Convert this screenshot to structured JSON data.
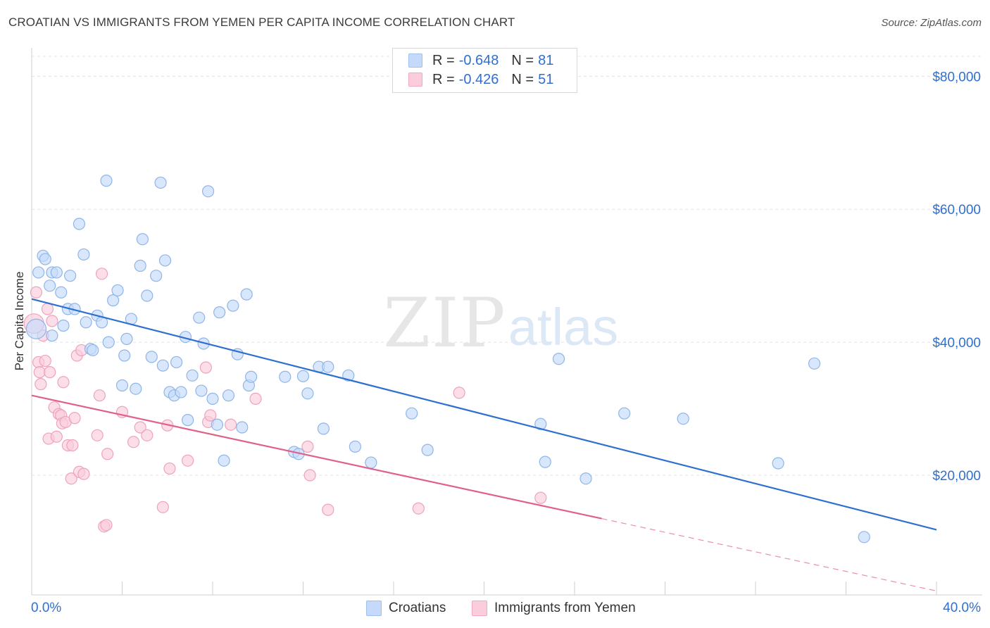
{
  "header": {
    "title": "CROATIAN VS IMMIGRANTS FROM YEMEN PER CAPITA INCOME CORRELATION CHART",
    "source": "Source: ZipAtlas.com"
  },
  "legend": {
    "r_label": "R =",
    "n_label": "N =",
    "items": [
      {
        "r": "-0.648",
        "n": "81",
        "color": "#9dc0ee",
        "fill": "#c5dafa"
      },
      {
        "r": "-0.426",
        "n": "51",
        "color": "#f0a9c0",
        "fill": "#fbcddc"
      }
    ]
  },
  "bottom_legend": [
    {
      "label": "Croatians",
      "color": "#9dc0ee",
      "fill": "#c5dafa"
    },
    {
      "label": "Immigrants from Yemen",
      "color": "#f0a9c0",
      "fill": "#fbcddc"
    }
  ],
  "watermark": {
    "zip": "ZIP",
    "atlas": "atlas"
  },
  "chart_data": {
    "type": "scatter",
    "title": "CROATIAN VS IMMIGRANTS FROM YEMEN PER CAPITA INCOME CORRELATION CHART",
    "xlabel": "",
    "ylabel": "Per Capita Income",
    "xlim": [
      0,
      40
    ],
    "ylim": [
      2000,
      83000
    ],
    "x_tick_labels": [
      "0.0%",
      "40.0%"
    ],
    "y_ticks": [
      {
        "value": 20000,
        "label": "$20,000"
      },
      {
        "value": 40000,
        "label": "$40,000"
      },
      {
        "value": 60000,
        "label": "$60,000"
      },
      {
        "value": 80000,
        "label": "$80,000"
      }
    ],
    "grid": true,
    "legend_position": "top-center",
    "colors": {
      "blue": "#2f6fd0",
      "pink": "#e0608a",
      "blue_point": "#9dc0ee",
      "pink_point": "#f0a9c0"
    },
    "series": [
      {
        "name": "Croatians",
        "color": "#2f6fd0",
        "point_fill": "#c5dafa",
        "point_stroke": "#8fb5e8",
        "trend": {
          "x": [
            0,
            40
          ],
          "y": [
            46500,
            11800
          ],
          "dashed_from": null
        },
        "points": [
          [
            0.2,
            42000
          ],
          [
            0.3,
            50500
          ],
          [
            0.5,
            53000
          ],
          [
            0.6,
            52500
          ],
          [
            0.8,
            48500
          ],
          [
            0.9,
            50500
          ],
          [
            1.1,
            50500
          ],
          [
            1.3,
            47500
          ],
          [
            1.4,
            42500
          ],
          [
            1.6,
            45000
          ],
          [
            1.7,
            50000
          ],
          [
            1.9,
            45000
          ],
          [
            2.1,
            57800
          ],
          [
            2.3,
            53200
          ],
          [
            2.4,
            43000
          ],
          [
            2.6,
            39000
          ],
          [
            2.7,
            38800
          ],
          [
            2.9,
            44000
          ],
          [
            3.1,
            43000
          ],
          [
            3.3,
            64300
          ],
          [
            3.4,
            40000
          ],
          [
            3.6,
            46300
          ],
          [
            3.8,
            47800
          ],
          [
            4.0,
            33500
          ],
          [
            4.1,
            38000
          ],
          [
            4.2,
            40500
          ],
          [
            4.4,
            43500
          ],
          [
            4.6,
            33000
          ],
          [
            4.8,
            51500
          ],
          [
            4.9,
            55500
          ],
          [
            5.1,
            47000
          ],
          [
            5.3,
            37800
          ],
          [
            5.5,
            50000
          ],
          [
            5.7,
            64000
          ],
          [
            5.8,
            36500
          ],
          [
            5.9,
            52300
          ],
          [
            6.1,
            32500
          ],
          [
            6.3,
            32000
          ],
          [
            6.4,
            37000
          ],
          [
            6.6,
            32500
          ],
          [
            6.8,
            40800
          ],
          [
            6.9,
            28300
          ],
          [
            7.1,
            35000
          ],
          [
            7.4,
            43700
          ],
          [
            7.5,
            32700
          ],
          [
            7.6,
            39800
          ],
          [
            7.8,
            62700
          ],
          [
            8.0,
            31500
          ],
          [
            8.2,
            27600
          ],
          [
            8.3,
            44500
          ],
          [
            8.5,
            22200
          ],
          [
            8.7,
            32000
          ],
          [
            8.9,
            45500
          ],
          [
            9.1,
            38200
          ],
          [
            9.3,
            27200
          ],
          [
            9.5,
            47200
          ],
          [
            9.6,
            33500
          ],
          [
            9.7,
            34800
          ],
          [
            11.2,
            34800
          ],
          [
            11.6,
            23500
          ],
          [
            11.8,
            23200
          ],
          [
            12.0,
            34900
          ],
          [
            12.2,
            32300
          ],
          [
            12.7,
            36300
          ],
          [
            12.9,
            27000
          ],
          [
            13.1,
            36300
          ],
          [
            14.0,
            35000
          ],
          [
            14.3,
            24300
          ],
          [
            15.0,
            21900
          ],
          [
            16.8,
            29300
          ],
          [
            17.5,
            23800
          ],
          [
            22.5,
            27700
          ],
          [
            22.7,
            22000
          ],
          [
            23.3,
            37500
          ],
          [
            24.5,
            19500
          ],
          [
            26.2,
            29300
          ],
          [
            28.8,
            28500
          ],
          [
            33.0,
            21800
          ],
          [
            34.6,
            36800
          ],
          [
            36.8,
            10700
          ],
          [
            0.9,
            41000
          ]
        ]
      },
      {
        "name": "Immigrants from Yemen",
        "color": "#e0608a",
        "point_fill": "#fbcddc",
        "point_stroke": "#eea3bb",
        "trend": {
          "x": [
            0,
            40
          ],
          "y": [
            32000,
            2600
          ],
          "dashed_from": 25.2
        },
        "points": [
          [
            0.2,
            47500
          ],
          [
            0.3,
            37000
          ],
          [
            0.35,
            35500
          ],
          [
            0.4,
            33700
          ],
          [
            0.5,
            41000
          ],
          [
            0.6,
            37200
          ],
          [
            0.7,
            45000
          ],
          [
            0.75,
            25500
          ],
          [
            0.8,
            35500
          ],
          [
            0.9,
            43200
          ],
          [
            1.0,
            30200
          ],
          [
            1.1,
            25800
          ],
          [
            1.2,
            29200
          ],
          [
            1.3,
            29000
          ],
          [
            1.35,
            27800
          ],
          [
            1.4,
            34000
          ],
          [
            1.5,
            28000
          ],
          [
            1.6,
            24500
          ],
          [
            1.75,
            19500
          ],
          [
            1.8,
            24500
          ],
          [
            1.9,
            28600
          ],
          [
            2.0,
            38000
          ],
          [
            2.1,
            20500
          ],
          [
            2.2,
            38800
          ],
          [
            2.3,
            20200
          ],
          [
            2.9,
            26000
          ],
          [
            3.0,
            32000
          ],
          [
            3.1,
            50300
          ],
          [
            3.2,
            12300
          ],
          [
            3.3,
            12500
          ],
          [
            3.35,
            23200
          ],
          [
            4.0,
            29500
          ],
          [
            4.5,
            25000
          ],
          [
            4.8,
            27200
          ],
          [
            5.1,
            26000
          ],
          [
            5.8,
            15200
          ],
          [
            6.0,
            27500
          ],
          [
            6.1,
            21000
          ],
          [
            6.9,
            22200
          ],
          [
            7.7,
            36200
          ],
          [
            7.8,
            28000
          ],
          [
            7.9,
            29000
          ],
          [
            8.8,
            27600
          ],
          [
            9.9,
            31500
          ],
          [
            12.2,
            24300
          ],
          [
            12.3,
            20000
          ],
          [
            13.1,
            14800
          ],
          [
            17.1,
            15000
          ],
          [
            18.9,
            32400
          ],
          [
            22.5,
            16600
          ],
          [
            0.1,
            42800
          ]
        ]
      }
    ]
  }
}
